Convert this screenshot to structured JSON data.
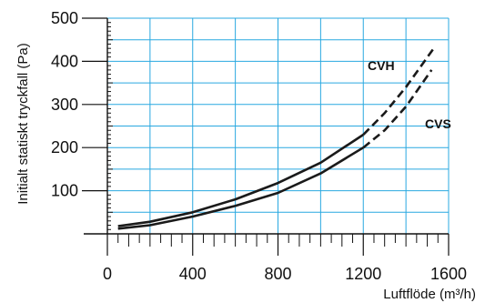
{
  "chart_data": {
    "type": "line",
    "xlabel": "Luftflöde (m³/h)",
    "ylabel": "Initialt statiskt tryckfall (Pa)",
    "xlim": [
      0,
      1600
    ],
    "ylim": [
      0,
      500
    ],
    "x_ticks": [
      "0",
      "400",
      "800",
      "1200",
      "1600"
    ],
    "y_ticks": [
      "100",
      "200",
      "300",
      "400",
      "500"
    ],
    "grid": true,
    "grid_color": "#29a8e0",
    "line_color": "#1a1a1a",
    "series": [
      {
        "name": "CVH",
        "x": [
          50,
          200,
          400,
          600,
          800,
          1000,
          1200,
          1300,
          1400,
          1530
        ],
        "y": [
          18,
          28,
          50,
          80,
          118,
          165,
          230,
          280,
          340,
          430
        ],
        "solid_until_x": 1200
      },
      {
        "name": "CVS",
        "x": [
          50,
          200,
          400,
          600,
          800,
          1000,
          1200,
          1300,
          1400,
          1520
        ],
        "y": [
          12,
          20,
          40,
          65,
          95,
          140,
          200,
          240,
          295,
          380
        ],
        "solid_until_x": 1200
      }
    ]
  }
}
